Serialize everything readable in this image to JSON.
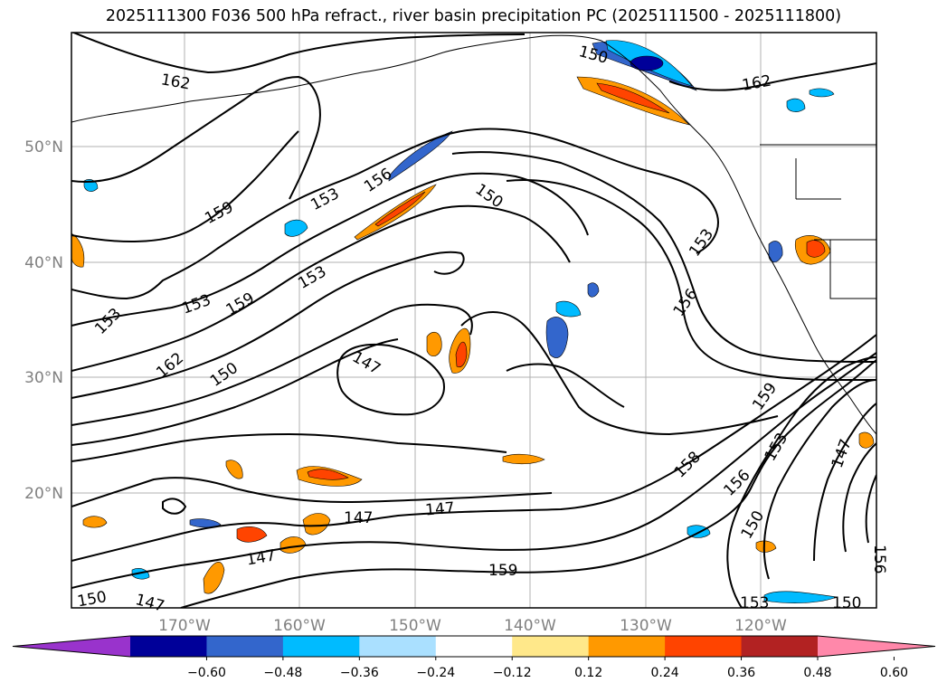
{
  "title": "2025111300 F036 500 hPa refract., river basin precipitation PC (2025111500 - 2025111800)",
  "lat_labels": [
    "20°N",
    "30°N",
    "40°N",
    "50°N"
  ],
  "lon_labels": [
    "170°W",
    "160°W",
    "150°W",
    "140°W",
    "130°W",
    "120°W"
  ],
  "contour_labels": [
    "162",
    "159",
    "153",
    "156",
    "150",
    "153",
    "159",
    "153",
    "153",
    "162",
    "150",
    "147",
    "150",
    "153",
    "156",
    "162",
    "159",
    "153",
    "156",
    "150",
    "147",
    "147",
    "147",
    "159",
    "147",
    "150",
    "153",
    "150",
    "156",
    "147",
    "158"
  ],
  "colorbar": {
    "colors": [
      "#9933cc",
      "#000099",
      "#3366cc",
      "#00bbff",
      "#aae0ff",
      "#ffffff",
      "#ffe88a",
      "#ff9900",
      "#ff4400",
      "#b22222",
      "#ff88aa"
    ],
    "tick_labels": [
      "−0.60",
      "−0.48",
      "−0.36",
      "−0.24",
      "−0.12",
      "0.12",
      "0.24",
      "0.36",
      "0.48",
      "0.60"
    ]
  }
}
